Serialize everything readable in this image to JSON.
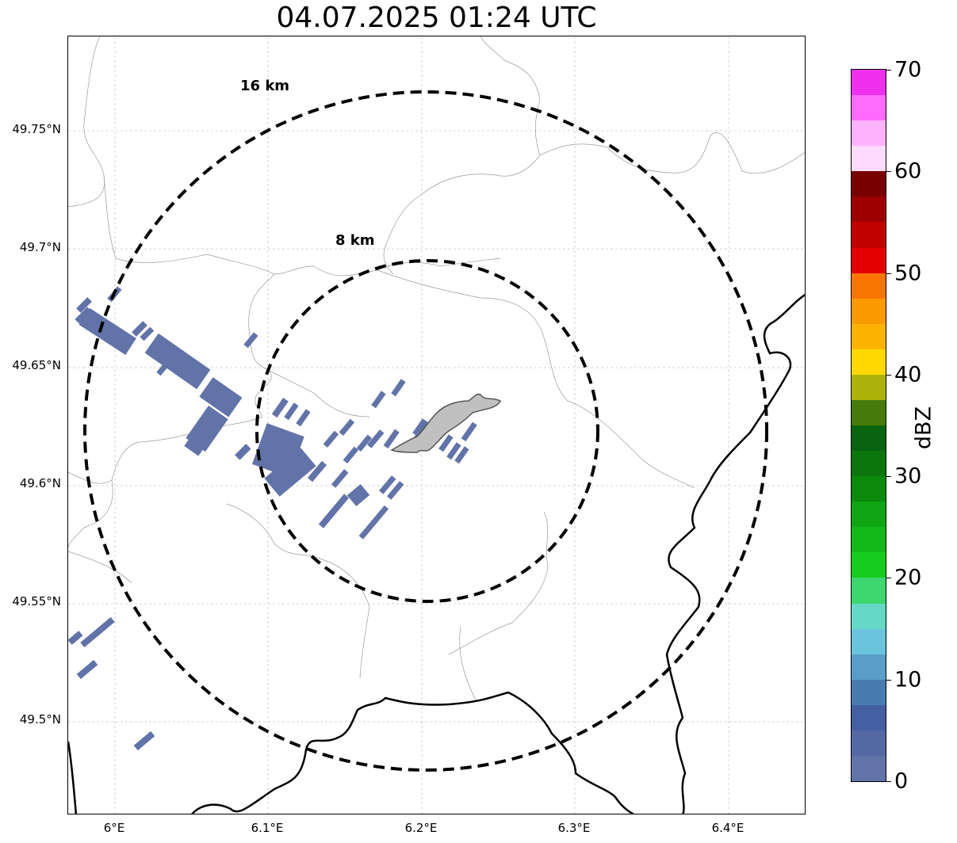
{
  "title": "04.07.2025 01:24 UTC",
  "map": {
    "lat_labels": [
      "49.75°N",
      "49.7°N",
      "49.65°N",
      "49.6°N",
      "49.55°N",
      "49.5°N"
    ],
    "lon_labels": [
      "6°E",
      "6.1°E",
      "6.2°E",
      "6.3°E",
      "6.4°E"
    ],
    "rings": [
      {
        "label": "16 km",
        "radius_km": 16
      },
      {
        "label": "8 km",
        "radius_km": 8
      }
    ],
    "center": {
      "lon": 6.2,
      "lat": 49.623
    }
  },
  "colorbar": {
    "label": "dBZ",
    "ticks": [
      "0",
      "10",
      "20",
      "30",
      "40",
      "50",
      "60",
      "70"
    ],
    "colors": [
      "#6273a8",
      "#5468a3",
      "#4460a2",
      "#4a7bb0",
      "#5a9dc8",
      "#6ac4dd",
      "#66d8c8",
      "#3ed66e",
      "#16cc1e",
      "#12b818",
      "#0ea412",
      "#0b8a0c",
      "#0a760c",
      "#096410",
      "#457b0a",
      "#adb20a",
      "#fed800",
      "#fbb300",
      "#fb9a00",
      "#fa7600",
      "#e50000",
      "#c10000",
      "#9e0000",
      "#7a0000",
      "#ffdbff",
      "#ffb3ff",
      "#ff6bff",
      "#ef30ef"
    ]
  },
  "legend_colors": {
    "echo": "#6273a8",
    "city": "#c0c0c0"
  }
}
